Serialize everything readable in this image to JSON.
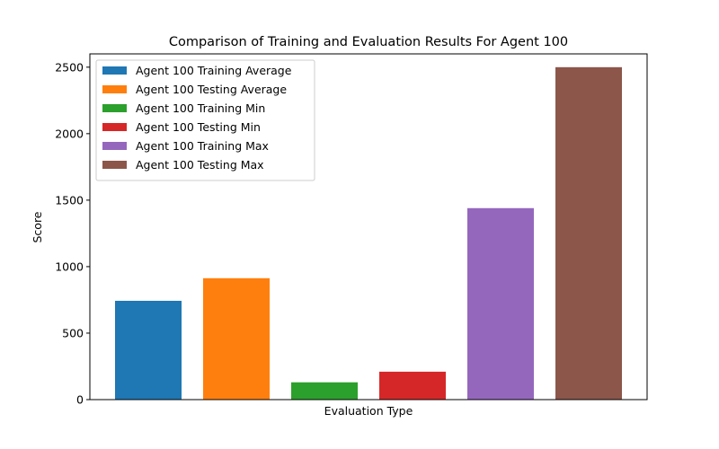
{
  "chart_data": {
    "type": "bar",
    "title": "Comparison of Training and Evaluation Results For Agent 100",
    "xlabel": "Evaluation Type",
    "ylabel": "Score",
    "ylim": [
      0,
      2600
    ],
    "yticks": [
      0,
      500,
      1000,
      1500,
      2000,
      2500
    ],
    "x_tick_labels_shown": false,
    "grid": false,
    "legend_position": "upper-left",
    "series": [
      {
        "name": "Agent 100 Training Average",
        "value": 743,
        "color": "#1f77b4"
      },
      {
        "name": "Agent 100 Testing Average",
        "value": 913,
        "color": "#ff7f0e"
      },
      {
        "name": "Agent 100 Training Min",
        "value": 130,
        "color": "#2ca02c"
      },
      {
        "name": "Agent 100 Testing Min",
        "value": 210,
        "color": "#d62728"
      },
      {
        "name": "Agent 100 Training Max",
        "value": 1440,
        "color": "#9467bd"
      },
      {
        "name": "Agent 100 Testing Max",
        "value": 2500,
        "color": "#8c564b"
      }
    ]
  }
}
